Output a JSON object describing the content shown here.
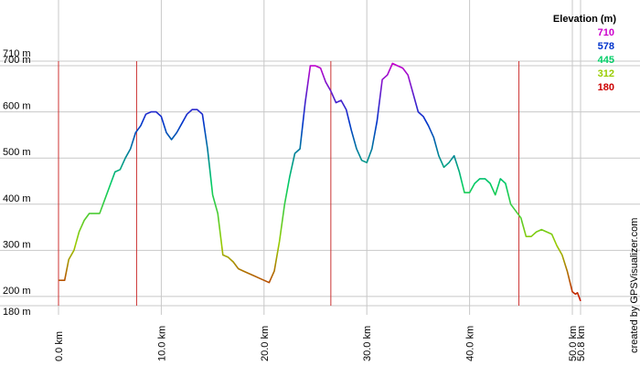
{
  "chart_data": {
    "type": "line",
    "credit": "created by GPSVisualizer.com",
    "xlim": [
      0,
      50.8
    ],
    "ylim": [
      180,
      710
    ],
    "x_ticks": [
      {
        "value": 0,
        "label": "0.0 km"
      },
      {
        "value": 10,
        "label": "10.0 km"
      },
      {
        "value": 20,
        "label": "20.0 km"
      },
      {
        "value": 30,
        "label": "30.0 km"
      },
      {
        "value": 40,
        "label": "40.0 km"
      },
      {
        "value": 50,
        "label": "50.0 km"
      },
      {
        "value": 50.8,
        "label": "50.8 km"
      }
    ],
    "y_ticks": [
      {
        "value": 710,
        "label": "710 m"
      },
      {
        "value": 700,
        "label": "700 m"
      },
      {
        "value": 600,
        "label": "600 m"
      },
      {
        "value": 500,
        "label": "500 m"
      },
      {
        "value": 400,
        "label": "400 m"
      },
      {
        "value": 300,
        "label": "300 m"
      },
      {
        "value": 200,
        "label": "200 m"
      },
      {
        "value": 180,
        "label": "180 m"
      }
    ],
    "markers_x": [
      7.6,
      26.5,
      44.8
    ],
    "legend": {
      "title": "Elevation (m)",
      "placement": "top-right",
      "entries": [
        {
          "label": "710",
          "color": "#cc00cc"
        },
        {
          "label": "578",
          "color": "#0033cc"
        },
        {
          "label": "445",
          "color": "#00cc66"
        },
        {
          "label": "312",
          "color": "#99cc00"
        },
        {
          "label": "180",
          "color": "#cc0000"
        }
      ]
    },
    "series": [
      {
        "x": [
          0,
          0.6,
          1.0,
          1.5,
          2.0,
          2.5,
          3.0,
          3.5,
          4.0,
          4.5,
          5.0,
          5.5,
          6.0,
          6.5,
          7.0,
          7.5,
          8.0,
          8.5,
          9.0,
          9.5,
          10.0,
          10.5,
          11.0,
          11.5,
          12.0,
          12.5,
          13.0,
          13.5,
          14.0,
          14.5,
          15.0,
          15.5,
          16.0,
          16.5,
          17.0,
          17.5,
          18.0,
          18.5,
          19.0,
          19.5,
          20.0,
          20.5,
          21.0,
          21.5,
          22.0,
          22.5,
          23.0,
          23.5,
          24.0,
          24.5,
          25.0,
          25.5,
          26.0,
          26.5,
          27.0,
          27.5,
          28.0,
          28.5,
          29.0,
          29.5,
          30.0,
          30.5,
          31.0,
          31.5,
          32.0,
          32.5,
          33.0,
          33.5,
          34.0,
          34.5,
          35.0,
          35.5,
          36.0,
          36.5,
          37.0,
          37.5,
          38.0,
          38.5,
          39.0,
          39.5,
          40.0,
          40.5,
          41.0,
          41.5,
          42.0,
          42.5,
          43.0,
          43.5,
          44.0,
          44.5,
          45.0,
          45.5,
          46.0,
          46.5,
          47.0,
          47.5,
          48.0,
          48.5,
          49.0,
          49.5,
          50.0,
          50.3,
          50.5,
          50.8
        ],
        "y": [
          235,
          235,
          280,
          300,
          340,
          365,
          380,
          380,
          380,
          410,
          440,
          470,
          475,
          500,
          520,
          555,
          570,
          595,
          600,
          600,
          590,
          555,
          540,
          555,
          575,
          595,
          605,
          605,
          595,
          520,
          420,
          380,
          290,
          285,
          275,
          260,
          255,
          250,
          245,
          240,
          235,
          230,
          255,
          320,
          400,
          460,
          510,
          520,
          620,
          700,
          700,
          695,
          665,
          645,
          620,
          625,
          605,
          560,
          520,
          495,
          490,
          520,
          580,
          670,
          680,
          705,
          700,
          695,
          680,
          640,
          600,
          590,
          570,
          545,
          505,
          480,
          490,
          505,
          470,
          425,
          425,
          445,
          455,
          455,
          445,
          420,
          455,
          445,
          400,
          385,
          370,
          330,
          330,
          340,
          345,
          340,
          335,
          310,
          290,
          255,
          210,
          205,
          208,
          190
        ]
      }
    ]
  }
}
